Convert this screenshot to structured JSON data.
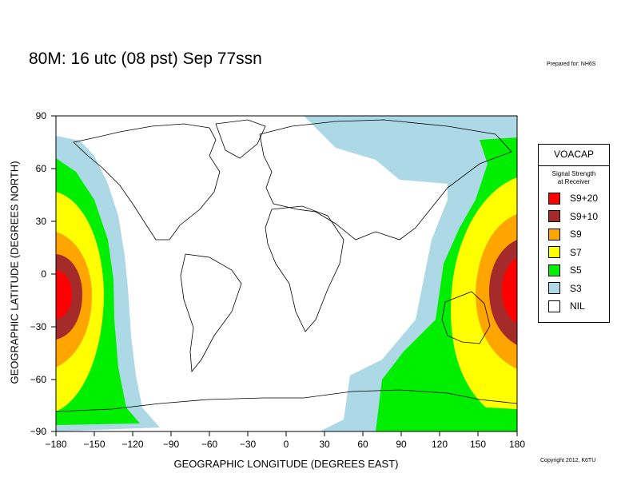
{
  "title": "80M:  16 utc (08 pst) Sep 77ssn",
  "prepared_for": "Prepared for: NH6S",
  "copyright": "Copyright 2012, K6TU",
  "axes": {
    "xlabel": "GEOGRAPHIC LONGITUDE (DEGREES EAST)",
    "ylabel": "GEOGRAPHIC LATITUDE (DEGREES NORTH)",
    "x_ticks": [
      "−180",
      "−150",
      "−120",
      "−90",
      "−60",
      "−30",
      "0",
      "30",
      "60",
      "90",
      "120",
      "150",
      "180"
    ],
    "y_ticks": [
      "90",
      "60",
      "30",
      "0",
      "−30",
      "−60",
      "−90"
    ],
    "x_range": [
      -180,
      180
    ],
    "y_range": [
      -90,
      90
    ]
  },
  "legend": {
    "title": "VOACAP",
    "subtitle_line1": "Signal Strength",
    "subtitle_line2": "at Receiver",
    "items": [
      {
        "label": "S9+20",
        "color": "#ff0000"
      },
      {
        "label": "S9+10",
        "color": "#a52a2a"
      },
      {
        "label": "S9",
        "color": "#ffa500"
      },
      {
        "label": "S7",
        "color": "#ffff00"
      },
      {
        "label": "S5",
        "color": "#00ee00"
      },
      {
        "label": "S3",
        "color": "#add8e6"
      },
      {
        "label": "NIL",
        "color": "#ffffff"
      }
    ]
  },
  "map": {
    "projection": "equirectangular",
    "background": "#ffffff",
    "coastline_color": "#000000"
  }
}
